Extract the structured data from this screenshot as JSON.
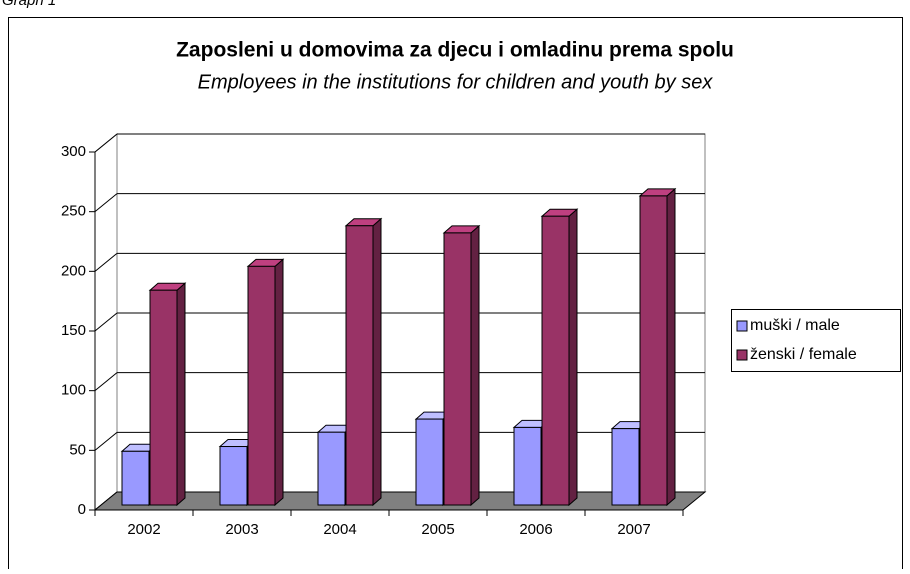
{
  "caption": "Graph 1",
  "chart_data": {
    "type": "bar3d",
    "title": "Zaposleni u domovima za djecu i omladinu prema spolu",
    "subtitle": "Employees in the institutions for children and youth by sex",
    "categories": [
      "2002",
      "2003",
      "2004",
      "2005",
      "2006",
      "2007"
    ],
    "series": [
      {
        "name": "muški / male",
        "color": "#9999ff",
        "values": [
          45,
          49,
          61,
          72,
          65,
          64
        ]
      },
      {
        "name": "ženski / female",
        "color": "#993366",
        "values": [
          180,
          200,
          234,
          228,
          242,
          259
        ]
      }
    ],
    "ylim": [
      0,
      300
    ],
    "yticks": [
      0,
      50,
      100,
      150,
      200,
      250,
      300
    ],
    "grid": true,
    "legend": "right"
  }
}
